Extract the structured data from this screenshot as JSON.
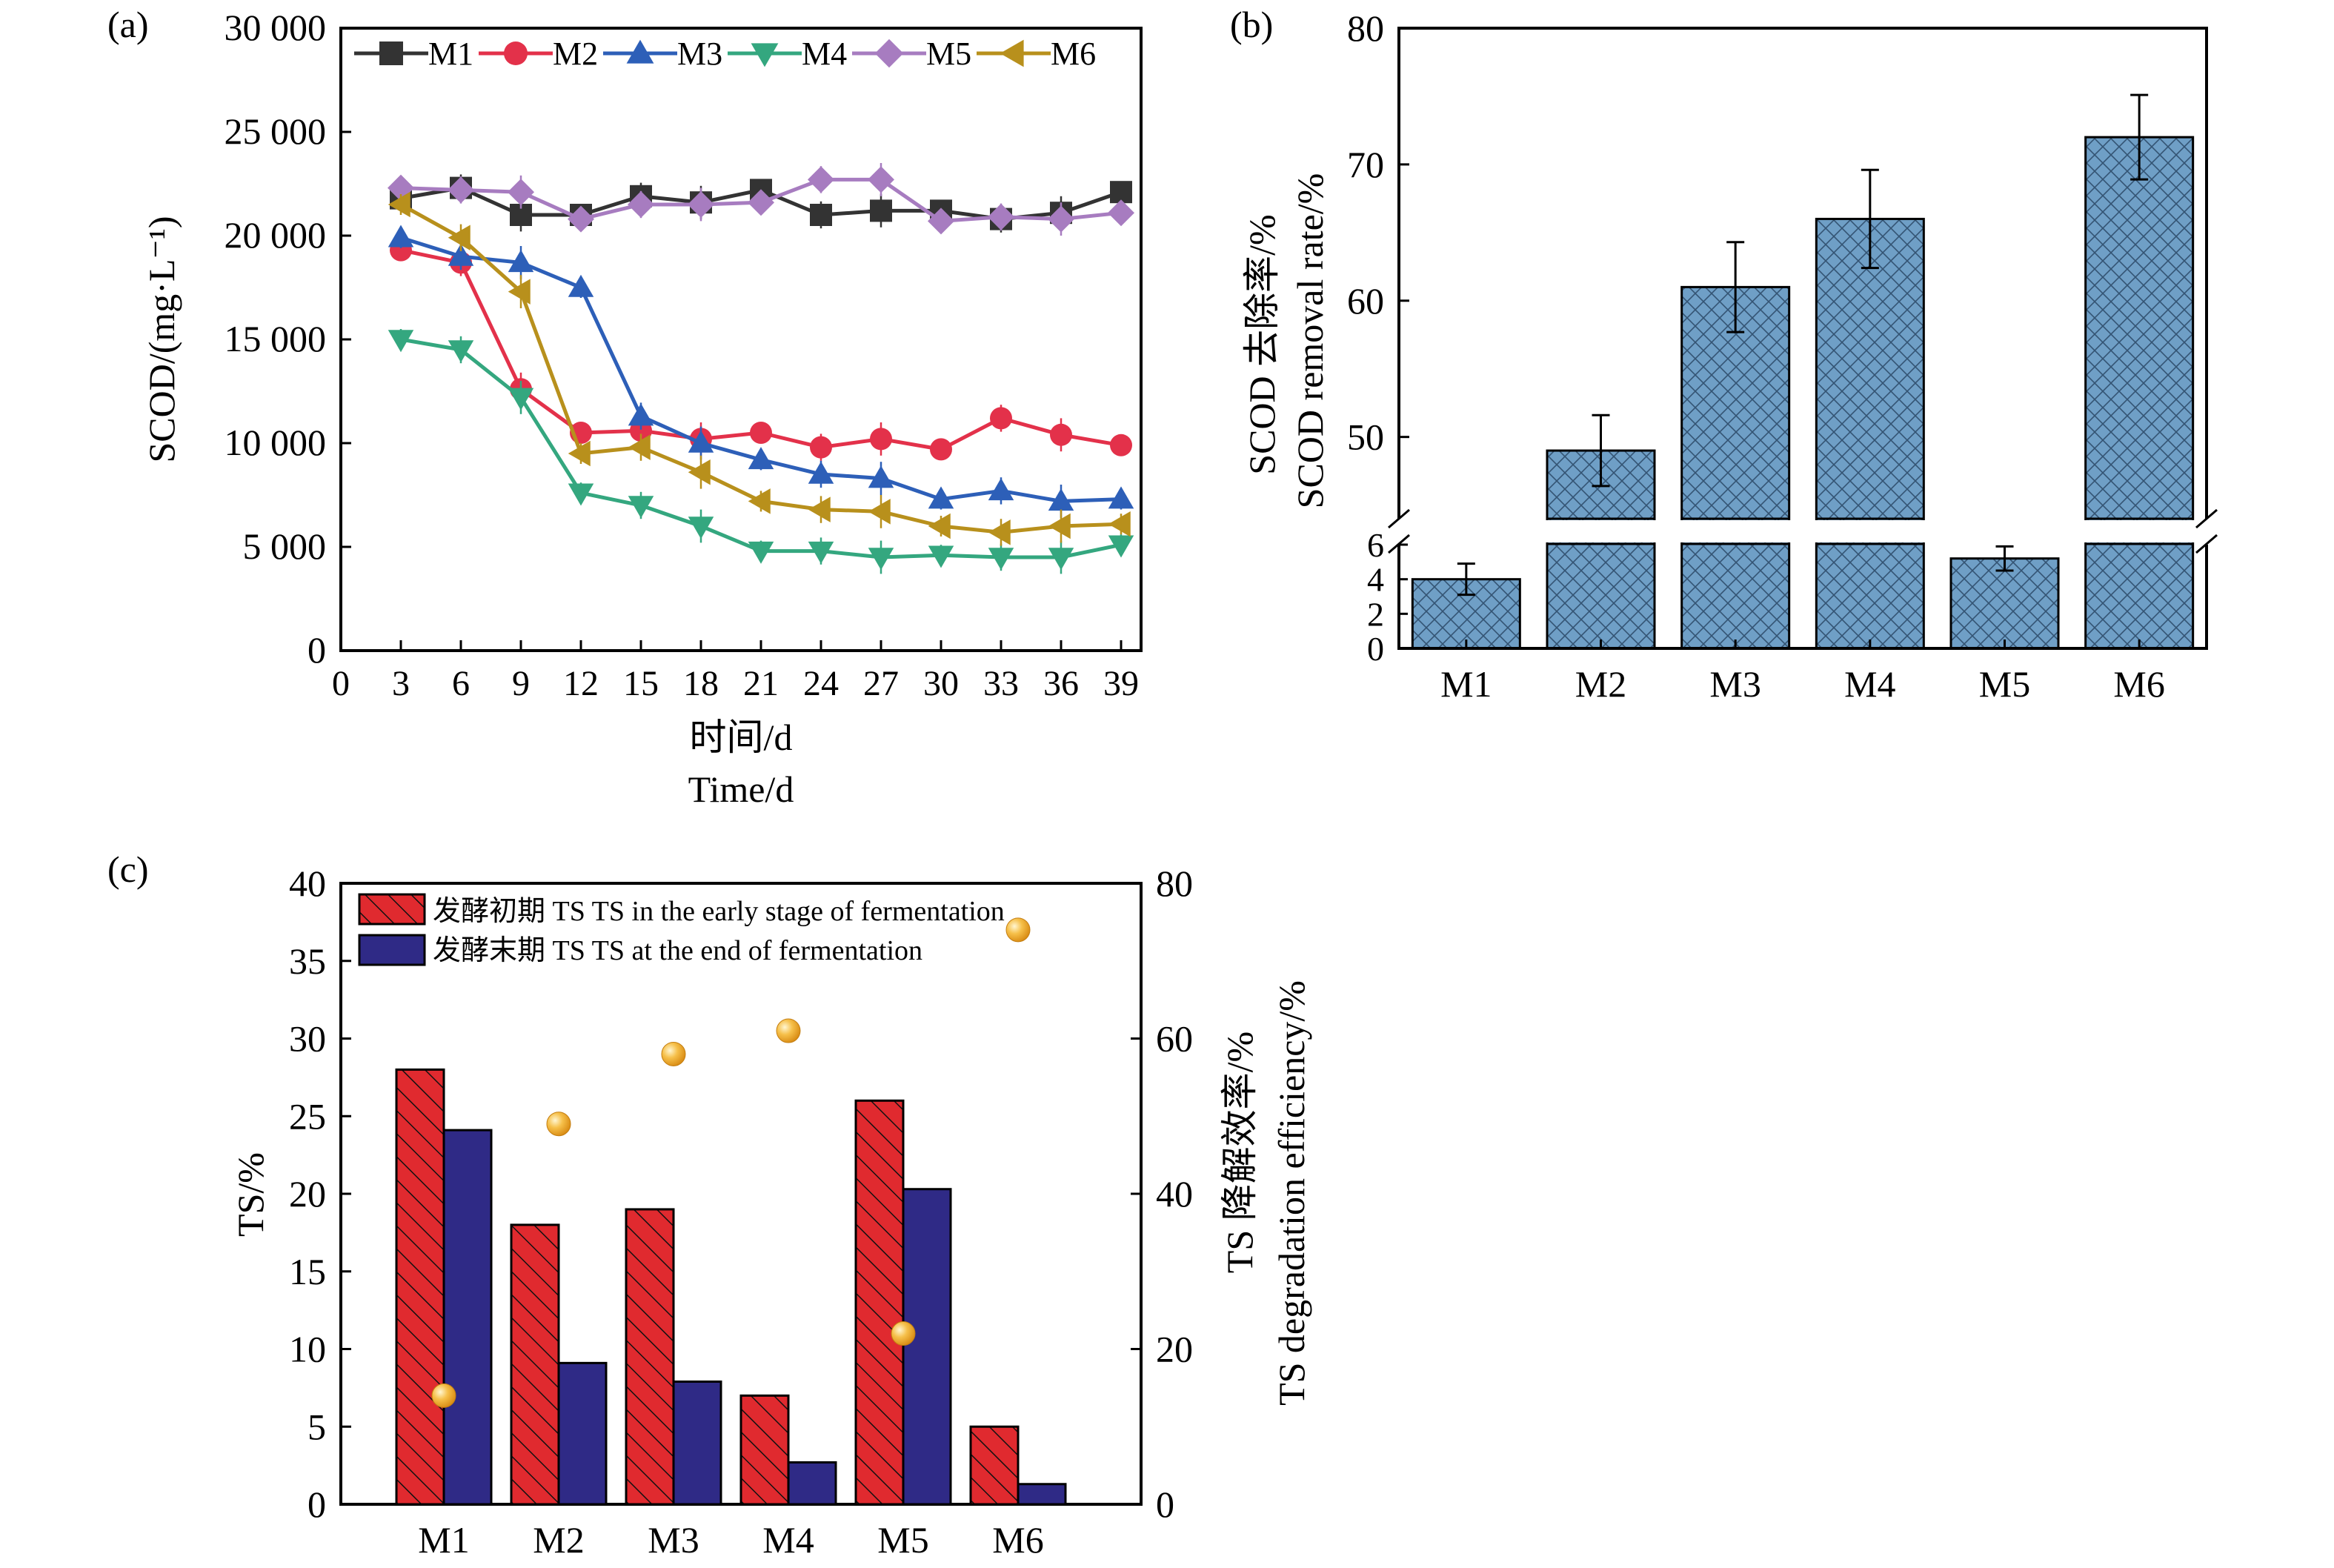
{
  "colors": {
    "M1": "#333333",
    "M2": "#e3314a",
    "M3": "#2d5fb8",
    "M4": "#34a77f",
    "M5": "#a77cc0",
    "M6": "#b8901c",
    "bar_fill": "#6f9fc6",
    "bar_hatch": "#1f3a57",
    "ts_initial": "#e02a2f",
    "ts_final": "#2f2a86",
    "ts_point": "#f2b43a"
  },
  "panels": {
    "a": {
      "tag": "(a)"
    },
    "b": {
      "tag": "(b)"
    },
    "c": {
      "tag": "(c)"
    }
  },
  "chart_data": [
    {
      "type": "line",
      "panel": "a",
      "ylabel": "SCOD/(mg·L⁻¹)",
      "xlabel_cn": "时间/d",
      "xlabel_en": "Time/d",
      "xlim": [
        0,
        40
      ],
      "ylim": [
        0,
        30000
      ],
      "xticks": [
        0,
        3,
        6,
        9,
        12,
        15,
        18,
        21,
        24,
        27,
        30,
        33,
        36,
        39
      ],
      "yticks": [
        0,
        5000,
        10000,
        15000,
        20000,
        25000,
        30000
      ],
      "ytick_labels": [
        "0",
        "5 000",
        "10 000",
        "15 000",
        "20 000",
        "25 000",
        "30 000"
      ],
      "x": [
        3,
        6,
        9,
        12,
        15,
        18,
        21,
        24,
        27,
        30,
        33,
        36,
        39
      ],
      "legend": "top",
      "series": [
        {
          "name": "M1",
          "marker": "square",
          "values": [
            21800,
            22300,
            21000,
            21000,
            21900,
            21600,
            22200,
            21000,
            21200,
            21200,
            20800,
            21100,
            22100
          ]
        },
        {
          "name": "M2",
          "marker": "circle",
          "values": [
            19300,
            18700,
            12600,
            10500,
            10600,
            10200,
            10500,
            9800,
            10200,
            9700,
            11200,
            10400,
            9900
          ]
        },
        {
          "name": "M3",
          "marker": "triangle-up",
          "values": [
            19900,
            19000,
            18700,
            17500,
            11300,
            10000,
            9200,
            8500,
            8300,
            7300,
            7700,
            7200,
            7300
          ]
        },
        {
          "name": "M4",
          "marker": "triangle-down",
          "values": [
            15000,
            14500,
            12200,
            7600,
            7000,
            6000,
            4800,
            4800,
            4500,
            4600,
            4500,
            4500,
            5100
          ]
        },
        {
          "name": "M5",
          "marker": "diamond",
          "values": [
            22300,
            22200,
            22100,
            20800,
            21500,
            21500,
            21600,
            22700,
            22700,
            20700,
            20900,
            20800,
            21100
          ]
        },
        {
          "name": "M6",
          "marker": "triangle-left",
          "values": [
            21500,
            19900,
            17300,
            9500,
            9800,
            8600,
            7200,
            6800,
            6700,
            6000,
            5700,
            6000,
            6100
          ]
        }
      ]
    },
    {
      "type": "bar",
      "panel": "b",
      "ylabel_cn": "SCOD 去除率/%",
      "ylabel_en": "SCOD removal rate/%",
      "categories": [
        "M1",
        "M2",
        "M3",
        "M4",
        "M5",
        "M6"
      ],
      "values": [
        4,
        49,
        61,
        66,
        5.2,
        72
      ],
      "errors": [
        0.9,
        2.6,
        3.3,
        3.6,
        0.7,
        3.1
      ],
      "axis_break": {
        "lower_range": [
          0,
          6
        ],
        "upper_range": [
          44,
          80
        ]
      },
      "lower_yticks": [
        0,
        2,
        4,
        6
      ],
      "upper_yticks": [
        50,
        60,
        70,
        80
      ]
    },
    {
      "type": "bar",
      "panel": "c",
      "ylabel_left": "TS/%",
      "ylabel_right_cn": "TS 降解效率/%",
      "ylabel_right_en": "TS degradation efficiency/%",
      "categories": [
        "M1",
        "M2",
        "M3",
        "M4",
        "M5",
        "M6"
      ],
      "ylim_left": [
        0,
        40
      ],
      "ylim_right": [
        0,
        80
      ],
      "yticks_left": [
        0,
        5,
        10,
        15,
        20,
        25,
        30,
        35,
        40
      ],
      "yticks_right": [
        0,
        20,
        40,
        60,
        80
      ],
      "legend": "top-left",
      "series": [
        {
          "name": "发酵初期 TS TS in the early stage of fermentation",
          "values": [
            28,
            18,
            19,
            7,
            26,
            5
          ]
        },
        {
          "name": "发酵末期 TS TS at the end of fermentation",
          "values": [
            24.1,
            9.1,
            7.9,
            2.7,
            20.3,
            1.3
          ]
        }
      ],
      "points": {
        "axis": "right",
        "values": [
          14,
          49,
          58,
          61,
          22,
          74
        ]
      }
    }
  ]
}
